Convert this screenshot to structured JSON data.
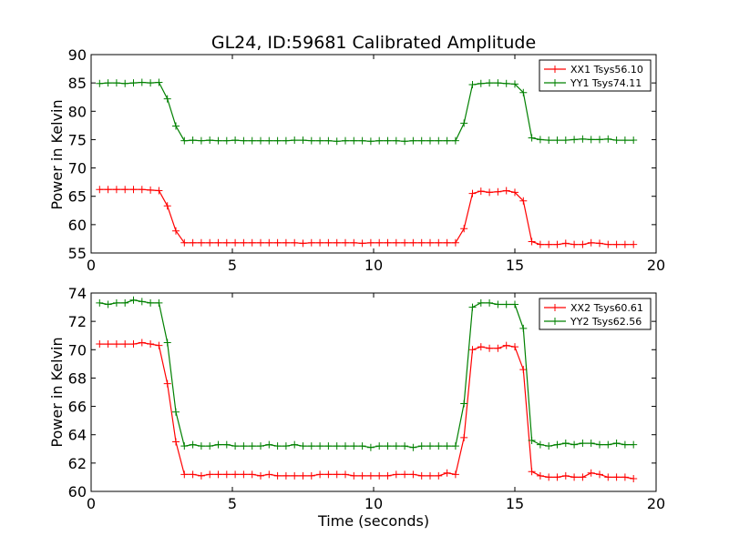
{
  "chart_data": [
    {
      "type": "line",
      "title": "GL24, ID:59681 Calibrated Amplitude",
      "xlabel": "",
      "ylabel": "Power in Kelvin",
      "xlim": [
        0,
        20
      ],
      "ylim": [
        55,
        90
      ],
      "xticks": [
        "0",
        "5",
        "10",
        "15",
        "20"
      ],
      "yticks": [
        "55",
        "60",
        "65",
        "70",
        "75",
        "80",
        "85",
        "90"
      ],
      "grid": false,
      "legend_position": "top-right",
      "series": [
        {
          "name": "XX1 Tsys56.10",
          "color": "#ff0000",
          "marker": "plus",
          "points": [
            [
              0.3,
              66.2
            ],
            [
              0.6,
              66.2
            ],
            [
              0.9,
              66.2
            ],
            [
              1.2,
              66.2
            ],
            [
              1.5,
              66.2
            ],
            [
              1.8,
              66.2
            ],
            [
              2.1,
              66.1
            ],
            [
              2.4,
              66.0
            ],
            [
              2.7,
              63.3
            ],
            [
              3.0,
              58.9
            ],
            [
              3.3,
              56.8
            ],
            [
              3.6,
              56.8
            ],
            [
              3.9,
              56.8
            ],
            [
              4.2,
              56.8
            ],
            [
              4.5,
              56.8
            ],
            [
              4.8,
              56.8
            ],
            [
              5.1,
              56.8
            ],
            [
              5.4,
              56.8
            ],
            [
              5.7,
              56.8
            ],
            [
              6.0,
              56.8
            ],
            [
              6.3,
              56.8
            ],
            [
              6.6,
              56.8
            ],
            [
              6.9,
              56.8
            ],
            [
              7.2,
              56.8
            ],
            [
              7.5,
              56.7
            ],
            [
              7.8,
              56.8
            ],
            [
              8.1,
              56.8
            ],
            [
              8.4,
              56.8
            ],
            [
              8.7,
              56.8
            ],
            [
              9.0,
              56.8
            ],
            [
              9.3,
              56.8
            ],
            [
              9.6,
              56.7
            ],
            [
              9.9,
              56.8
            ],
            [
              10.2,
              56.8
            ],
            [
              10.5,
              56.8
            ],
            [
              10.8,
              56.8
            ],
            [
              11.1,
              56.8
            ],
            [
              11.4,
              56.8
            ],
            [
              11.7,
              56.8
            ],
            [
              12.0,
              56.8
            ],
            [
              12.3,
              56.8
            ],
            [
              12.6,
              56.8
            ],
            [
              12.9,
              56.8
            ],
            [
              13.2,
              59.3
            ],
            [
              13.5,
              65.5
            ],
            [
              13.8,
              65.9
            ],
            [
              14.1,
              65.7
            ],
            [
              14.4,
              65.8
            ],
            [
              14.7,
              66.0
            ],
            [
              15.0,
              65.7
            ],
            [
              15.3,
              64.2
            ],
            [
              15.6,
              57.0
            ],
            [
              15.9,
              56.5
            ],
            [
              16.2,
              56.5
            ],
            [
              16.5,
              56.5
            ],
            [
              16.8,
              56.7
            ],
            [
              17.1,
              56.5
            ],
            [
              17.4,
              56.5
            ],
            [
              17.7,
              56.8
            ],
            [
              18.0,
              56.7
            ],
            [
              18.3,
              56.5
            ],
            [
              18.6,
              56.5
            ],
            [
              18.9,
              56.5
            ],
            [
              19.2,
              56.5
            ]
          ]
        },
        {
          "name": "YY1 Tsys74.11",
          "color": "#008000",
          "marker": "plus",
          "points": [
            [
              0.3,
              84.9
            ],
            [
              0.6,
              85.0
            ],
            [
              0.9,
              85.0
            ],
            [
              1.2,
              84.9
            ],
            [
              1.5,
              85.0
            ],
            [
              1.8,
              85.1
            ],
            [
              2.1,
              85.0
            ],
            [
              2.4,
              85.1
            ],
            [
              2.7,
              82.2
            ],
            [
              3.0,
              77.4
            ],
            [
              3.3,
              74.8
            ],
            [
              3.6,
              74.9
            ],
            [
              3.9,
              74.8
            ],
            [
              4.2,
              74.9
            ],
            [
              4.5,
              74.8
            ],
            [
              4.8,
              74.8
            ],
            [
              5.1,
              74.9
            ],
            [
              5.4,
              74.8
            ],
            [
              5.7,
              74.8
            ],
            [
              6.0,
              74.8
            ],
            [
              6.3,
              74.8
            ],
            [
              6.6,
              74.8
            ],
            [
              6.9,
              74.8
            ],
            [
              7.2,
              74.9
            ],
            [
              7.5,
              74.9
            ],
            [
              7.8,
              74.8
            ],
            [
              8.1,
              74.8
            ],
            [
              8.4,
              74.8
            ],
            [
              8.7,
              74.7
            ],
            [
              9.0,
              74.8
            ],
            [
              9.3,
              74.8
            ],
            [
              9.6,
              74.8
            ],
            [
              9.9,
              74.7
            ],
            [
              10.2,
              74.8
            ],
            [
              10.5,
              74.8
            ],
            [
              10.8,
              74.8
            ],
            [
              11.1,
              74.7
            ],
            [
              11.4,
              74.8
            ],
            [
              11.7,
              74.8
            ],
            [
              12.0,
              74.8
            ],
            [
              12.3,
              74.8
            ],
            [
              12.6,
              74.8
            ],
            [
              12.9,
              74.8
            ],
            [
              13.2,
              77.9
            ],
            [
              13.5,
              84.7
            ],
            [
              13.8,
              84.9
            ],
            [
              14.1,
              85.0
            ],
            [
              14.4,
              85.0
            ],
            [
              14.7,
              84.9
            ],
            [
              15.0,
              84.8
            ],
            [
              15.3,
              83.3
            ],
            [
              15.6,
              75.3
            ],
            [
              15.9,
              75.0
            ],
            [
              16.2,
              74.9
            ],
            [
              16.5,
              74.9
            ],
            [
              16.8,
              74.9
            ],
            [
              17.1,
              75.0
            ],
            [
              17.4,
              75.1
            ],
            [
              17.7,
              75.0
            ],
            [
              18.0,
              75.0
            ],
            [
              18.3,
              75.1
            ],
            [
              18.6,
              74.9
            ],
            [
              18.9,
              74.9
            ],
            [
              19.2,
              74.9
            ]
          ]
        }
      ]
    },
    {
      "type": "line",
      "title": "",
      "xlabel": "Time (seconds)",
      "ylabel": "Power in Kelvin",
      "xlim": [
        0,
        20
      ],
      "ylim": [
        60,
        74
      ],
      "xticks": [
        "0",
        "5",
        "10",
        "15",
        "20"
      ],
      "yticks": [
        "60",
        "62",
        "64",
        "66",
        "68",
        "70",
        "72",
        "74"
      ],
      "grid": false,
      "legend_position": "top-right",
      "series": [
        {
          "name": "XX2 Tsys60.61",
          "color": "#ff0000",
          "marker": "plus",
          "points": [
            [
              0.3,
              70.4
            ],
            [
              0.6,
              70.4
            ],
            [
              0.9,
              70.4
            ],
            [
              1.2,
              70.4
            ],
            [
              1.5,
              70.4
            ],
            [
              1.8,
              70.5
            ],
            [
              2.1,
              70.4
            ],
            [
              2.4,
              70.3
            ],
            [
              2.7,
              67.6
            ],
            [
              3.0,
              63.5
            ],
            [
              3.3,
              61.2
            ],
            [
              3.6,
              61.2
            ],
            [
              3.9,
              61.1
            ],
            [
              4.2,
              61.2
            ],
            [
              4.5,
              61.2
            ],
            [
              4.8,
              61.2
            ],
            [
              5.1,
              61.2
            ],
            [
              5.4,
              61.2
            ],
            [
              5.7,
              61.2
            ],
            [
              6.0,
              61.1
            ],
            [
              6.3,
              61.2
            ],
            [
              6.6,
              61.1
            ],
            [
              6.9,
              61.1
            ],
            [
              7.2,
              61.1
            ],
            [
              7.5,
              61.1
            ],
            [
              7.8,
              61.1
            ],
            [
              8.1,
              61.2
            ],
            [
              8.4,
              61.2
            ],
            [
              8.7,
              61.2
            ],
            [
              9.0,
              61.2
            ],
            [
              9.3,
              61.1
            ],
            [
              9.6,
              61.1
            ],
            [
              9.9,
              61.1
            ],
            [
              10.2,
              61.1
            ],
            [
              10.5,
              61.1
            ],
            [
              10.8,
              61.2
            ],
            [
              11.1,
              61.2
            ],
            [
              11.4,
              61.2
            ],
            [
              11.7,
              61.1
            ],
            [
              12.0,
              61.1
            ],
            [
              12.3,
              61.1
            ],
            [
              12.6,
              61.3
            ],
            [
              12.9,
              61.2
            ],
            [
              13.2,
              63.8
            ],
            [
              13.5,
              70.0
            ],
            [
              13.8,
              70.2
            ],
            [
              14.1,
              70.1
            ],
            [
              14.4,
              70.1
            ],
            [
              14.7,
              70.3
            ],
            [
              15.0,
              70.2
            ],
            [
              15.3,
              68.6
            ],
            [
              15.6,
              61.4
            ],
            [
              15.9,
              61.1
            ],
            [
              16.2,
              61.0
            ],
            [
              16.5,
              61.0
            ],
            [
              16.8,
              61.1
            ],
            [
              17.1,
              61.0
            ],
            [
              17.4,
              61.0
            ],
            [
              17.7,
              61.3
            ],
            [
              18.0,
              61.2
            ],
            [
              18.3,
              61.0
            ],
            [
              18.6,
              61.0
            ],
            [
              18.9,
              61.0
            ],
            [
              19.2,
              60.9
            ]
          ]
        },
        {
          "name": "YY2 Tsys62.56",
          "color": "#008000",
          "marker": "plus",
          "points": [
            [
              0.3,
              73.3
            ],
            [
              0.6,
              73.2
            ],
            [
              0.9,
              73.3
            ],
            [
              1.2,
              73.3
            ],
            [
              1.5,
              73.5
            ],
            [
              1.8,
              73.4
            ],
            [
              2.1,
              73.3
            ],
            [
              2.4,
              73.3
            ],
            [
              2.7,
              70.5
            ],
            [
              3.0,
              65.6
            ],
            [
              3.3,
              63.2
            ],
            [
              3.6,
              63.3
            ],
            [
              3.9,
              63.2
            ],
            [
              4.2,
              63.2
            ],
            [
              4.5,
              63.3
            ],
            [
              4.8,
              63.3
            ],
            [
              5.1,
              63.2
            ],
            [
              5.4,
              63.2
            ],
            [
              5.7,
              63.2
            ],
            [
              6.0,
              63.2
            ],
            [
              6.3,
              63.3
            ],
            [
              6.6,
              63.2
            ],
            [
              6.9,
              63.2
            ],
            [
              7.2,
              63.3
            ],
            [
              7.5,
              63.2
            ],
            [
              7.8,
              63.2
            ],
            [
              8.1,
              63.2
            ],
            [
              8.4,
              63.2
            ],
            [
              8.7,
              63.2
            ],
            [
              9.0,
              63.2
            ],
            [
              9.3,
              63.2
            ],
            [
              9.6,
              63.2
            ],
            [
              9.9,
              63.1
            ],
            [
              10.2,
              63.2
            ],
            [
              10.5,
              63.2
            ],
            [
              10.8,
              63.2
            ],
            [
              11.1,
              63.2
            ],
            [
              11.4,
              63.1
            ],
            [
              11.7,
              63.2
            ],
            [
              12.0,
              63.2
            ],
            [
              12.3,
              63.2
            ],
            [
              12.6,
              63.2
            ],
            [
              12.9,
              63.2
            ],
            [
              13.2,
              66.2
            ],
            [
              13.5,
              73.0
            ],
            [
              13.8,
              73.3
            ],
            [
              14.1,
              73.3
            ],
            [
              14.4,
              73.2
            ],
            [
              14.7,
              73.2
            ],
            [
              15.0,
              73.2
            ],
            [
              15.3,
              71.5
            ],
            [
              15.6,
              63.6
            ],
            [
              15.9,
              63.3
            ],
            [
              16.2,
              63.2
            ],
            [
              16.5,
              63.3
            ],
            [
              16.8,
              63.4
            ],
            [
              17.1,
              63.3
            ],
            [
              17.4,
              63.4
            ],
            [
              17.7,
              63.4
            ],
            [
              18.0,
              63.3
            ],
            [
              18.3,
              63.3
            ],
            [
              18.6,
              63.4
            ],
            [
              18.9,
              63.3
            ],
            [
              19.2,
              63.3
            ]
          ]
        }
      ]
    }
  ]
}
